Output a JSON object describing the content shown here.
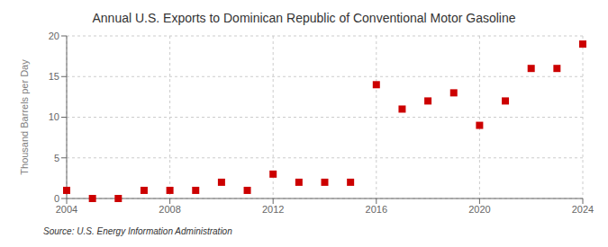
{
  "chart_data": {
    "type": "scatter",
    "title": "Annual U.S. Exports to Dominican Republic of Conventional Motor Gasoline",
    "ylabel": "Thousand Barrels per Day",
    "annotations": [
      "Source: U.S. Energy Information Administration"
    ],
    "x": [
      2004,
      2005,
      2006,
      2007,
      2008,
      2009,
      2010,
      2011,
      2012,
      2013,
      2014,
      2015,
      2016,
      2017,
      2018,
      2019,
      2020,
      2021,
      2022,
      2023,
      2024
    ],
    "values": [
      1.0,
      0.0,
      0.0,
      1.0,
      1.0,
      1.0,
      2.0,
      1.0,
      3.0,
      2.0,
      2.0,
      2.0,
      14.0,
      11.0,
      12.0,
      13.0,
      9.0,
      12.0,
      16.0,
      16.0,
      19.0
    ],
    "color": "#CC0000",
    "marker": "square",
    "xlim": [
      2004,
      2024
    ],
    "xticks": [
      2004,
      2008,
      2012,
      2016,
      2020,
      2024
    ],
    "ylim": [
      0,
      20
    ],
    "yticks": [
      0,
      5,
      10,
      15,
      20
    ],
    "grid": true
  }
}
